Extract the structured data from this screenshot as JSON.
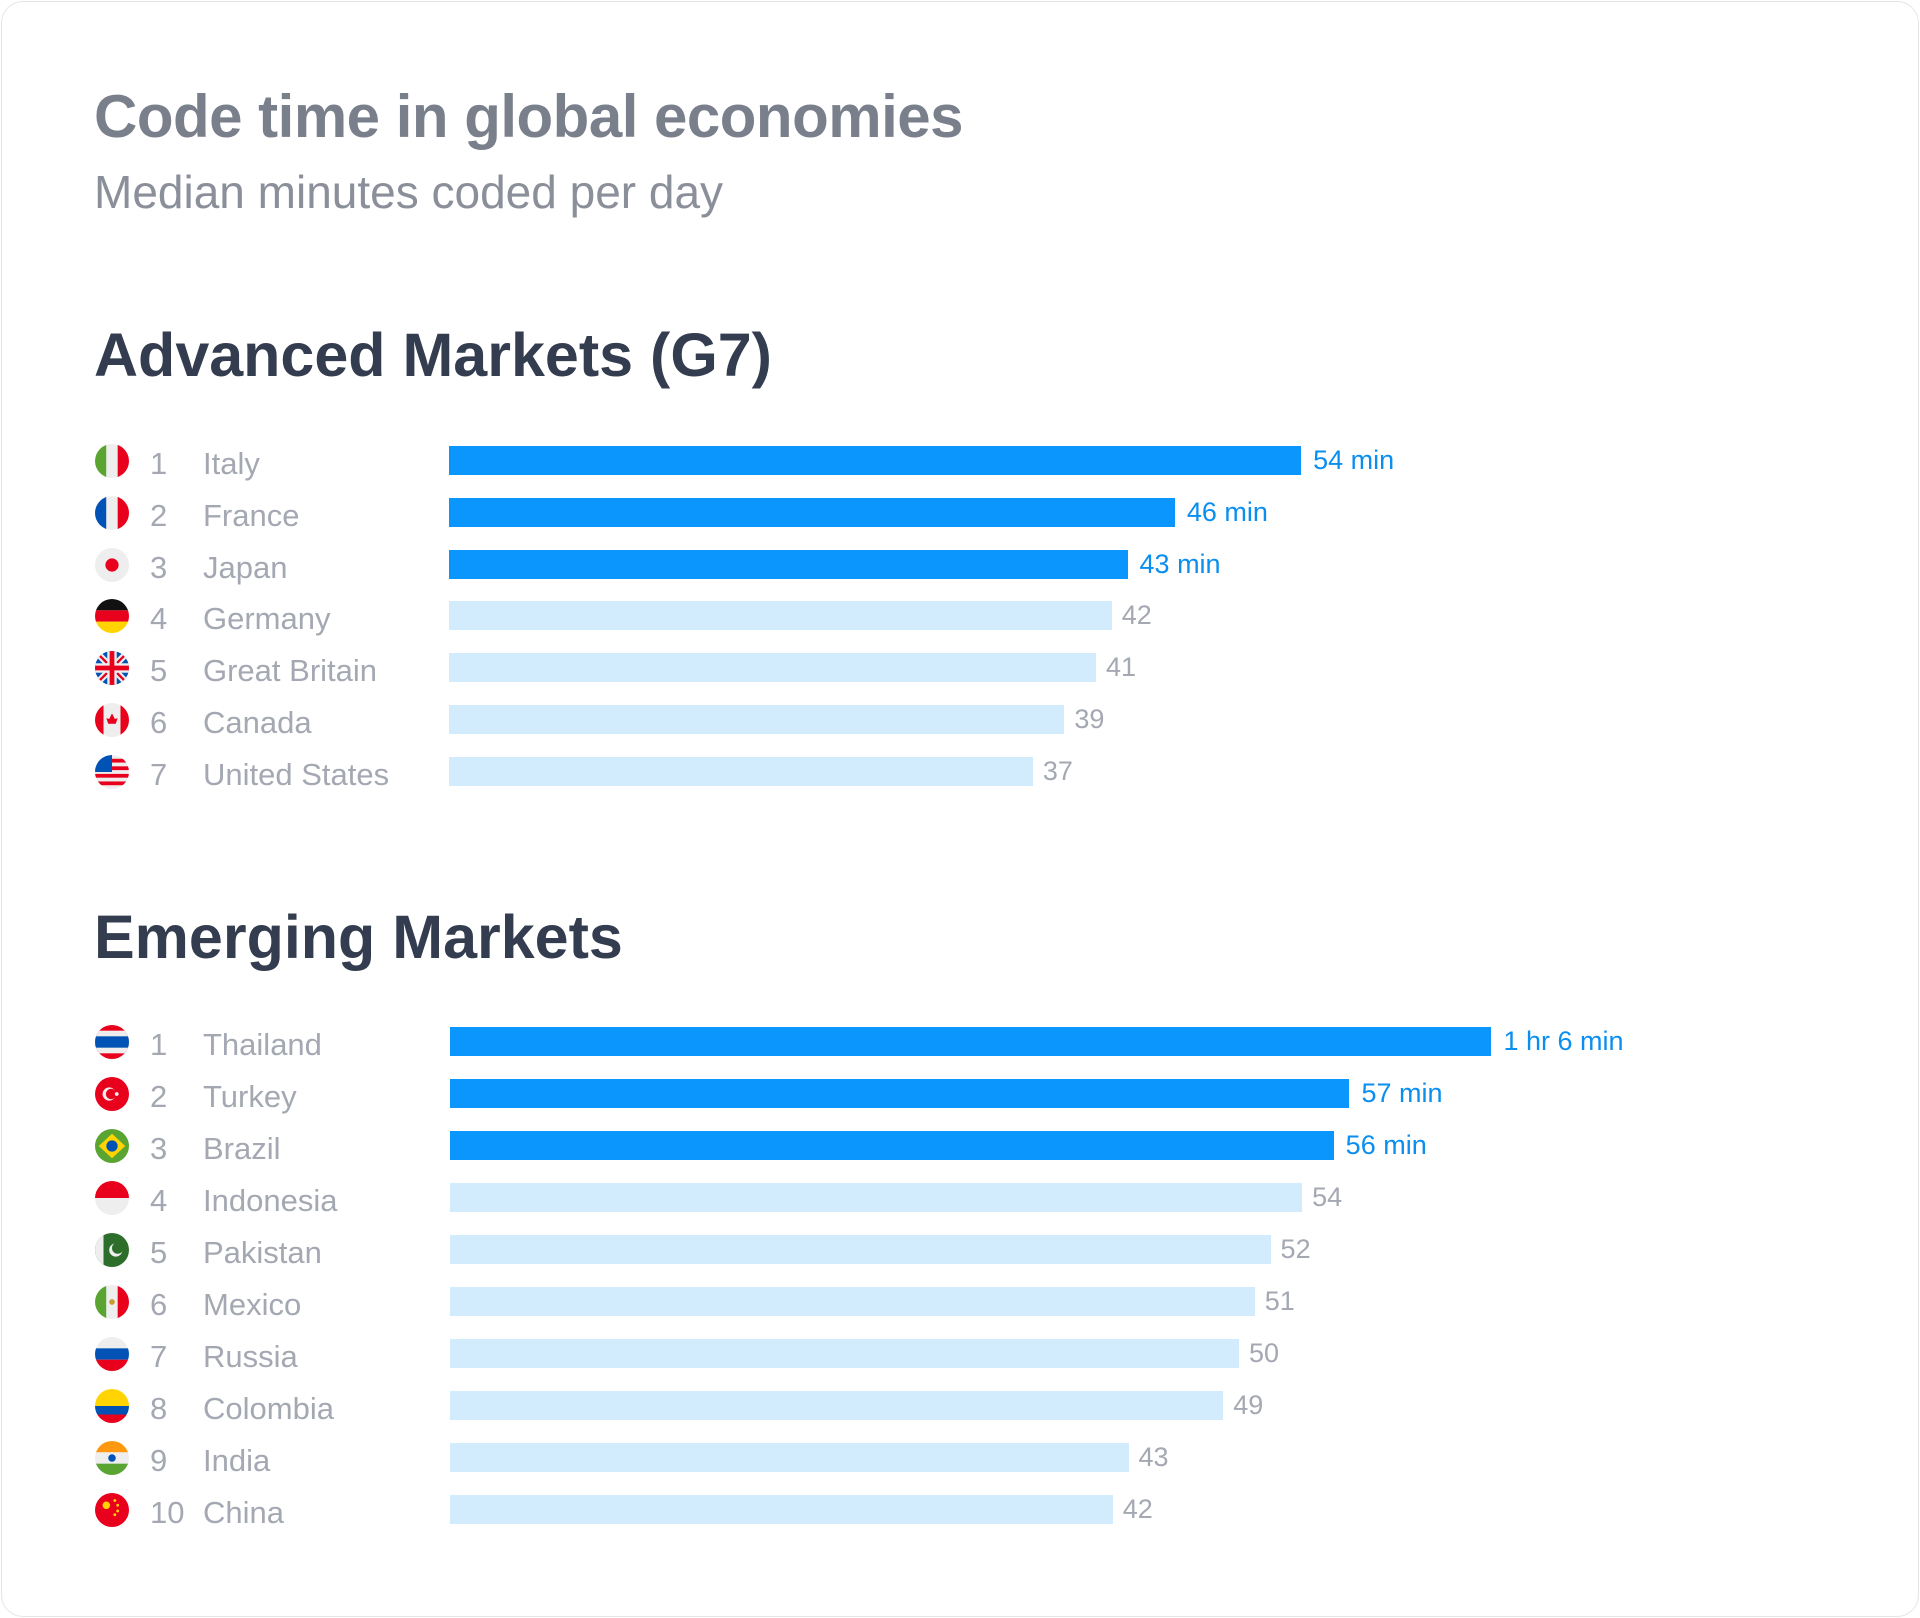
{
  "header": {
    "title": "Code time in global economies",
    "subtitle": "Median minutes coded per day"
  },
  "colors": {
    "highlight": "#0a96fc",
    "normal": "#d2ebfd",
    "highlight_label": "#0a8ef0",
    "normal_label": "#a4a8b2"
  },
  "chart_data": [
    {
      "type": "bar",
      "orientation": "horizontal",
      "title": "Advanced Markets (G7)",
      "unit": "minutes",
      "items": [
        {
          "rank": "1",
          "name": "Italy",
          "value": 54,
          "label": "54 min",
          "highlight": true,
          "flag": "italy-flag-icon"
        },
        {
          "rank": "2",
          "name": "France",
          "value": 46,
          "label": "46 min",
          "highlight": true,
          "flag": "france-flag-icon"
        },
        {
          "rank": "3",
          "name": "Japan",
          "value": 43,
          "label": "43 min",
          "highlight": true,
          "flag": "japan-flag-icon"
        },
        {
          "rank": "4",
          "name": "Germany",
          "value": 42,
          "label": "42",
          "highlight": false,
          "flag": "germany-flag-icon"
        },
        {
          "rank": "5",
          "name": "Great Britain",
          "value": 41,
          "label": "41",
          "highlight": false,
          "flag": "uk-flag-icon"
        },
        {
          "rank": "6",
          "name": "Canada",
          "value": 39,
          "label": "39",
          "highlight": false,
          "flag": "canada-flag-icon"
        },
        {
          "rank": "7",
          "name": "United States",
          "value": 37,
          "label": "37",
          "highlight": false,
          "flag": "usa-flag-icon"
        }
      ]
    },
    {
      "type": "bar",
      "orientation": "horizontal",
      "title": "Emerging Markets",
      "unit": "minutes",
      "items": [
        {
          "rank": "1",
          "name": "Thailand",
          "value": 66,
          "label": "1 hr 6 min",
          "highlight": true,
          "flag": "thailand-flag-icon"
        },
        {
          "rank": "2",
          "name": "Turkey",
          "value": 57,
          "label": "57 min",
          "highlight": true,
          "flag": "turkey-flag-icon"
        },
        {
          "rank": "3",
          "name": "Brazil",
          "value": 56,
          "label": "56 min",
          "highlight": true,
          "flag": "brazil-flag-icon"
        },
        {
          "rank": "4",
          "name": "Indonesia",
          "value": 54,
          "label": "54",
          "highlight": false,
          "flag": "indonesia-flag-icon"
        },
        {
          "rank": "5",
          "name": "Pakistan",
          "value": 52,
          "label": "52",
          "highlight": false,
          "flag": "pakistan-flag-icon"
        },
        {
          "rank": "6",
          "name": "Mexico",
          "value": 51,
          "label": "51",
          "highlight": false,
          "flag": "mexico-flag-icon"
        },
        {
          "rank": "7",
          "name": "Russia",
          "value": 50,
          "label": "50",
          "highlight": false,
          "flag": "russia-flag-icon"
        },
        {
          "rank": "8",
          "name": "Colombia",
          "value": 49,
          "label": "49",
          "highlight": false,
          "flag": "colombia-flag-icon"
        },
        {
          "rank": "9",
          "name": "India",
          "value": 43,
          "label": "43",
          "highlight": false,
          "flag": "india-flag-icon"
        },
        {
          "rank": "10",
          "name": "China",
          "value": 42,
          "label": "42",
          "highlight": false,
          "flag": "china-flag-icon"
        }
      ]
    }
  ]
}
